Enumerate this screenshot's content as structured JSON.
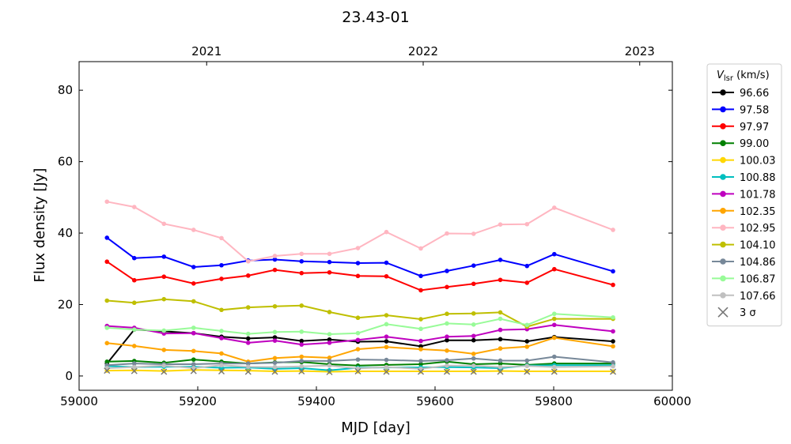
{
  "chart_data": {
    "type": "line",
    "title": "23.43-01",
    "xlabel": "MJD [day]",
    "ylabel": "Flux density [Jy]",
    "xlim": [
      59000,
      60000
    ],
    "ylim": [
      -4,
      88
    ],
    "xticks": [
      59000,
      59200,
      59400,
      59600,
      59800,
      60000
    ],
    "yticks": [
      0,
      20,
      40,
      60,
      80
    ],
    "top_axis": {
      "ticks": [
        {
          "label": "2021",
          "mjd": 59215
        },
        {
          "label": "2022",
          "mjd": 59580
        },
        {
          "label": "2023",
          "mjd": 59945
        }
      ]
    },
    "legend": {
      "title": "V_lsr (km/s)",
      "title_main": "V",
      "title_sub": "lsr",
      "title_unit": " (km/s)",
      "position": "outside-right"
    },
    "x": [
      59047,
      59093,
      59143,
      59193,
      59240,
      59285,
      59330,
      59375,
      59422,
      59470,
      59518,
      59576,
      59620,
      59665,
      59710,
      59755,
      59801,
      59900
    ],
    "series": [
      {
        "name": "96.66",
        "color": "#000000",
        "values": [
          3.5,
          13.0,
          12.5,
          12.0,
          11.0,
          10.5,
          10.8,
          9.8,
          10.2,
          9.6,
          9.7,
          8.3,
          10.0,
          10.0,
          10.3,
          9.7,
          10.9,
          9.7
        ]
      },
      {
        "name": "97.58",
        "color": "#0000ff",
        "values": [
          38.7,
          33.0,
          33.4,
          30.5,
          31.0,
          32.3,
          32.6,
          32.1,
          31.9,
          31.6,
          31.7,
          28.0,
          29.4,
          30.9,
          32.5,
          30.8,
          34.1,
          29.3
        ]
      },
      {
        "name": "97.97",
        "color": "#ff0000",
        "values": [
          32.0,
          26.8,
          27.8,
          25.9,
          27.2,
          28.1,
          29.7,
          28.8,
          29.0,
          28.0,
          27.9,
          24.0,
          24.9,
          25.8,
          26.9,
          26.1,
          29.9,
          25.5
        ]
      },
      {
        "name": "99.00",
        "color": "#008000",
        "values": [
          4.0,
          4.2,
          3.7,
          4.6,
          4.0,
          3.5,
          3.8,
          3.9,
          3.3,
          2.9,
          3.1,
          3.3,
          4.0,
          3.3,
          3.5,
          3.1,
          3.5,
          3.5
        ]
      },
      {
        "name": "100.03",
        "color": "#ffd700",
        "values": [
          1.5,
          1.6,
          1.4,
          1.7,
          1.6,
          1.5,
          1.3,
          1.4,
          1.2,
          1.3,
          1.3,
          1.3,
          1.3,
          1.3,
          1.4,
          1.3,
          1.3,
          1.3
        ]
      },
      {
        "name": "100.88",
        "color": "#00bfbf",
        "values": [
          2.8,
          2.5,
          2.6,
          2.6,
          2.3,
          2.4,
          2.0,
          2.2,
          1.6,
          2.3,
          2.4,
          2.4,
          2.5,
          2.4,
          2.2,
          2.9,
          3.0,
          3.0
        ]
      },
      {
        "name": "101.78",
        "color": "#bf00bf",
        "values": [
          14.0,
          13.5,
          11.9,
          12.0,
          10.6,
          9.3,
          9.9,
          8.8,
          9.3,
          10.1,
          11.0,
          9.8,
          11.0,
          11.2,
          12.9,
          13.1,
          14.3,
          12.5
        ]
      },
      {
        "name": "102.35",
        "color": "#ffa500",
        "values": [
          9.2,
          8.4,
          7.3,
          7.0,
          6.3,
          4.0,
          5.0,
          5.4,
          5.1,
          7.5,
          8.1,
          7.5,
          7.1,
          6.2,
          7.7,
          8.2,
          10.7,
          8.3
        ]
      },
      {
        "name": "102.95",
        "color": "#ffb6c1",
        "values": [
          48.8,
          47.3,
          42.6,
          40.9,
          38.6,
          32.1,
          33.6,
          34.2,
          34.2,
          35.8,
          40.3,
          35.7,
          39.9,
          39.8,
          42.4,
          42.5,
          47.1,
          40.9
        ]
      },
      {
        "name": "104.10",
        "color": "#bfbf00",
        "values": [
          21.1,
          20.5,
          21.5,
          20.9,
          18.5,
          19.2,
          19.5,
          19.7,
          17.9,
          16.3,
          17.0,
          15.9,
          17.4,
          17.5,
          17.8,
          13.8,
          16.0,
          16.0
        ]
      },
      {
        "name": "104.86",
        "color": "#778899",
        "values": [
          3.0,
          3.5,
          3.3,
          3.3,
          3.5,
          3.5,
          3.7,
          4.2,
          4.2,
          4.6,
          4.5,
          4.2,
          4.4,
          4.9,
          4.3,
          4.3,
          5.4,
          3.8
        ]
      },
      {
        "name": "106.87",
        "color": "#98fb98",
        "values": [
          13.5,
          13.0,
          12.7,
          13.5,
          12.6,
          11.8,
          12.3,
          12.4,
          11.7,
          12.0,
          14.5,
          13.2,
          14.7,
          14.4,
          16.0,
          14.3,
          17.4,
          16.4
        ]
      },
      {
        "name": "107.66",
        "color": "#c0c0c0",
        "values": [
          2.2,
          2.5,
          2.9,
          2.2,
          3.0,
          2.6,
          2.5,
          2.7,
          2.9,
          2.1,
          2.5,
          2.0,
          2.9,
          2.9,
          2.5,
          2.8,
          2.5,
          2.7
        ]
      }
    ],
    "sigma3": {
      "name": "3 σ",
      "color": "#777777",
      "values": [
        1.5,
        1.4,
        1.2,
        1.4,
        1.3,
        1.2,
        1.2,
        1.3,
        1.1,
        1.3,
        1.2,
        1.2,
        1.2,
        1.2,
        1.2,
        1.2,
        1.2,
        1.2
      ]
    }
  }
}
